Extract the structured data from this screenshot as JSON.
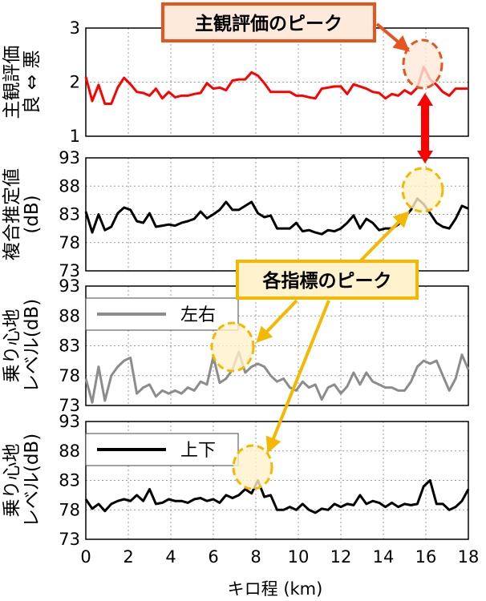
{
  "chart_data": [
    {
      "type": "line",
      "ylabel": "主観評価\n良 ⇔ 悪",
      "ylim": [
        1,
        3
      ],
      "yticks": [
        "1",
        "2",
        "3"
      ],
      "xlim": [
        0,
        18
      ],
      "grid": true,
      "series": [
        {
          "color": "#ff0000",
          "x": [
            0,
            0.3,
            0.6,
            0.9,
            1.2,
            1.5,
            1.8,
            2.1,
            2.4,
            2.7,
            3.0,
            3.3,
            3.6,
            3.9,
            4.2,
            4.5,
            4.8,
            5.1,
            5.4,
            5.7,
            6.0,
            6.3,
            6.6,
            6.9,
            7.2,
            7.5,
            7.8,
            8.1,
            8.4,
            8.7,
            9.0,
            9.3,
            9.6,
            9.9,
            10.2,
            10.5,
            10.8,
            11.1,
            11.4,
            11.7,
            12.0,
            12.3,
            12.6,
            12.9,
            13.2,
            13.5,
            13.8,
            14.1,
            14.4,
            14.7,
            15.0,
            15.3,
            15.6,
            15.9,
            16.2,
            16.5,
            16.8,
            17.1,
            17.4,
            17.7,
            18.0
          ],
          "values": [
            2.1,
            1.65,
            1.95,
            1.6,
            1.6,
            1.9,
            2.08,
            1.96,
            1.82,
            1.8,
            1.75,
            1.88,
            1.7,
            1.82,
            1.72,
            1.75,
            1.75,
            1.78,
            1.8,
            1.98,
            1.88,
            1.9,
            1.85,
            2.03,
            2.05,
            2.05,
            2.18,
            2.12,
            1.98,
            1.82,
            1.82,
            1.82,
            1.82,
            1.75,
            1.75,
            1.72,
            1.7,
            1.88,
            1.9,
            1.92,
            1.92,
            1.78,
            1.96,
            1.92,
            1.88,
            1.82,
            1.8,
            1.7,
            1.78,
            1.75,
            1.85,
            1.78,
            1.9,
            2.28,
            2.05,
            1.95,
            1.82,
            1.75,
            1.88,
            1.88,
            1.88
          ]
        }
      ]
    },
    {
      "type": "line",
      "ylabel": "複合推定値\n(dB)",
      "ylim": [
        73,
        93
      ],
      "yticks": [
        "73",
        "78",
        "83",
        "88",
        "93"
      ],
      "xlim": [
        0,
        18
      ],
      "grid": true,
      "series": [
        {
          "color": "#000000",
          "x": [
            0,
            0.3,
            0.6,
            0.9,
            1.2,
            1.5,
            1.8,
            2.1,
            2.4,
            2.7,
            3.0,
            3.3,
            3.6,
            3.9,
            4.2,
            4.5,
            4.8,
            5.1,
            5.4,
            5.7,
            6.0,
            6.3,
            6.6,
            6.9,
            7.2,
            7.5,
            7.8,
            8.1,
            8.4,
            8.7,
            9.0,
            9.3,
            9.6,
            9.9,
            10.2,
            10.5,
            10.8,
            11.1,
            11.4,
            11.7,
            12.0,
            12.3,
            12.6,
            12.9,
            13.2,
            13.5,
            13.8,
            14.1,
            14.4,
            14.7,
            15.0,
            15.3,
            15.6,
            15.9,
            16.2,
            16.5,
            16.8,
            17.1,
            17.4,
            17.7,
            18.0
          ],
          "values": [
            83.5,
            79.8,
            83,
            80.2,
            80.8,
            83.2,
            84.2,
            83.8,
            81.8,
            81.5,
            83.2,
            80.8,
            81,
            81.2,
            81,
            81.5,
            81.8,
            82.2,
            83.5,
            82.3,
            83,
            83.8,
            85.2,
            83.8,
            83.8,
            84.5,
            85.2,
            83.2,
            82.5,
            82.8,
            80.5,
            80.5,
            80.5,
            81.5,
            80,
            80.2,
            79.8,
            79.5,
            80.2,
            80,
            80.5,
            81.5,
            82.8,
            80.5,
            82.2,
            81.5,
            80.2,
            80.5,
            80.5,
            81.2,
            82.5,
            83.8,
            85.8,
            84.8,
            83.2,
            81.5,
            80.8,
            80.5,
            82.2,
            84.5,
            84
          ]
        }
      ]
    },
    {
      "type": "line",
      "ylabel": "乗り心地\nレベル(dB)",
      "ylim": [
        73,
        93
      ],
      "yticks": [
        "73",
        "78",
        "83",
        "88",
        "93"
      ],
      "xlim": [
        0,
        18
      ],
      "grid": true,
      "legend": "top-left",
      "series": [
        {
          "name": "左右",
          "color": "#8c8c8c",
          "x": [
            0,
            0.3,
            0.6,
            0.9,
            1.2,
            1.5,
            1.8,
            2.1,
            2.4,
            2.7,
            3.0,
            3.3,
            3.6,
            3.9,
            4.2,
            4.5,
            4.8,
            5.1,
            5.4,
            5.7,
            6.0,
            6.3,
            6.6,
            6.9,
            7.2,
            7.5,
            7.8,
            8.1,
            8.4,
            8.7,
            9.0,
            9.3,
            9.6,
            9.9,
            10.2,
            10.5,
            10.8,
            11.1,
            11.4,
            11.7,
            12.0,
            12.3,
            12.6,
            12.9,
            13.2,
            13.5,
            13.8,
            14.1,
            14.4,
            14.7,
            15.0,
            15.3,
            15.6,
            15.9,
            16.2,
            16.5,
            16.8,
            17.1,
            17.4,
            17.7,
            18.0
          ],
          "values": [
            77.5,
            73.5,
            79.5,
            73.8,
            78,
            79.5,
            80.5,
            81,
            75,
            76,
            76.5,
            74.5,
            75.5,
            75,
            75.5,
            75,
            76,
            75.5,
            77,
            76.5,
            81.2,
            76.8,
            77.5,
            79,
            82,
            78.5,
            79.5,
            80,
            79.5,
            78,
            77,
            77.5,
            76,
            75.5,
            77,
            76,
            76.5,
            74,
            76,
            76.5,
            75,
            76.2,
            78.5,
            76.5,
            78.5,
            77,
            76.5,
            76,
            76,
            75.5,
            75.5,
            77,
            79.5,
            80.5,
            80,
            80.5,
            78,
            75.5,
            77.5,
            81.5,
            79
          ]
        }
      ]
    },
    {
      "type": "line",
      "ylabel": "乗り心地\nレベル(dB)",
      "ylim": [
        73,
        93
      ],
      "yticks": [
        "73",
        "78",
        "83",
        "88",
        "93"
      ],
      "xlim": [
        0,
        18
      ],
      "xticks": [
        "0",
        "2",
        "4",
        "6",
        "8",
        "10",
        "12",
        "14",
        "16",
        "18"
      ],
      "xlabel": "キロ程 (km)",
      "grid": true,
      "legend": "top-left",
      "series": [
        {
          "name": "上下",
          "color": "#000000",
          "x": [
            0,
            0.3,
            0.6,
            0.9,
            1.2,
            1.5,
            1.8,
            2.1,
            2.4,
            2.7,
            3.0,
            3.3,
            3.6,
            3.9,
            4.2,
            4.5,
            4.8,
            5.1,
            5.4,
            5.7,
            6.0,
            6.3,
            6.6,
            6.9,
            7.2,
            7.5,
            7.8,
            8.1,
            8.4,
            8.7,
            9.0,
            9.3,
            9.6,
            9.9,
            10.2,
            10.5,
            10.8,
            11.1,
            11.4,
            11.7,
            12.0,
            12.3,
            12.6,
            12.9,
            13.2,
            13.5,
            13.8,
            14.1,
            14.4,
            14.7,
            15.0,
            15.3,
            15.6,
            15.9,
            16.2,
            16.5,
            16.8,
            17.1,
            17.4,
            17.7,
            18.0
          ],
          "values": [
            79.8,
            78.2,
            79,
            77.8,
            79,
            79.5,
            79.8,
            79.5,
            80.5,
            79.5,
            81.5,
            79,
            79.2,
            79.8,
            79.5,
            79.5,
            79.2,
            79.8,
            80,
            79.5,
            79.8,
            79.2,
            80.5,
            80,
            80.5,
            81.5,
            80.8,
            83,
            80.2,
            80.5,
            78,
            78,
            78.5,
            78,
            79,
            78,
            77.5,
            78.2,
            78,
            79,
            78.5,
            79,
            78.8,
            80.5,
            79,
            79.5,
            79.2,
            78.5,
            79.2,
            78.5,
            79,
            78.8,
            79,
            82,
            83,
            79,
            79,
            78,
            78.5,
            79.5,
            81.5
          ]
        }
      ]
    }
  ],
  "annotations": {
    "subjective_peak_label": "主観評価のピーク",
    "index_peaks_label": "各指標のピーク"
  },
  "colors": {
    "subjective_line": "#ff0000",
    "composite_line": "#000000",
    "lateral_line": "#8c8c8c",
    "vertical_line": "#000000",
    "callout_red_border": "#e8541e",
    "callout_red_fill": "#fdeada",
    "callout_orange_border": "#f5b800",
    "callout_orange_fill": "#fff2cc",
    "peak_link_arrow": "#ff0000"
  }
}
